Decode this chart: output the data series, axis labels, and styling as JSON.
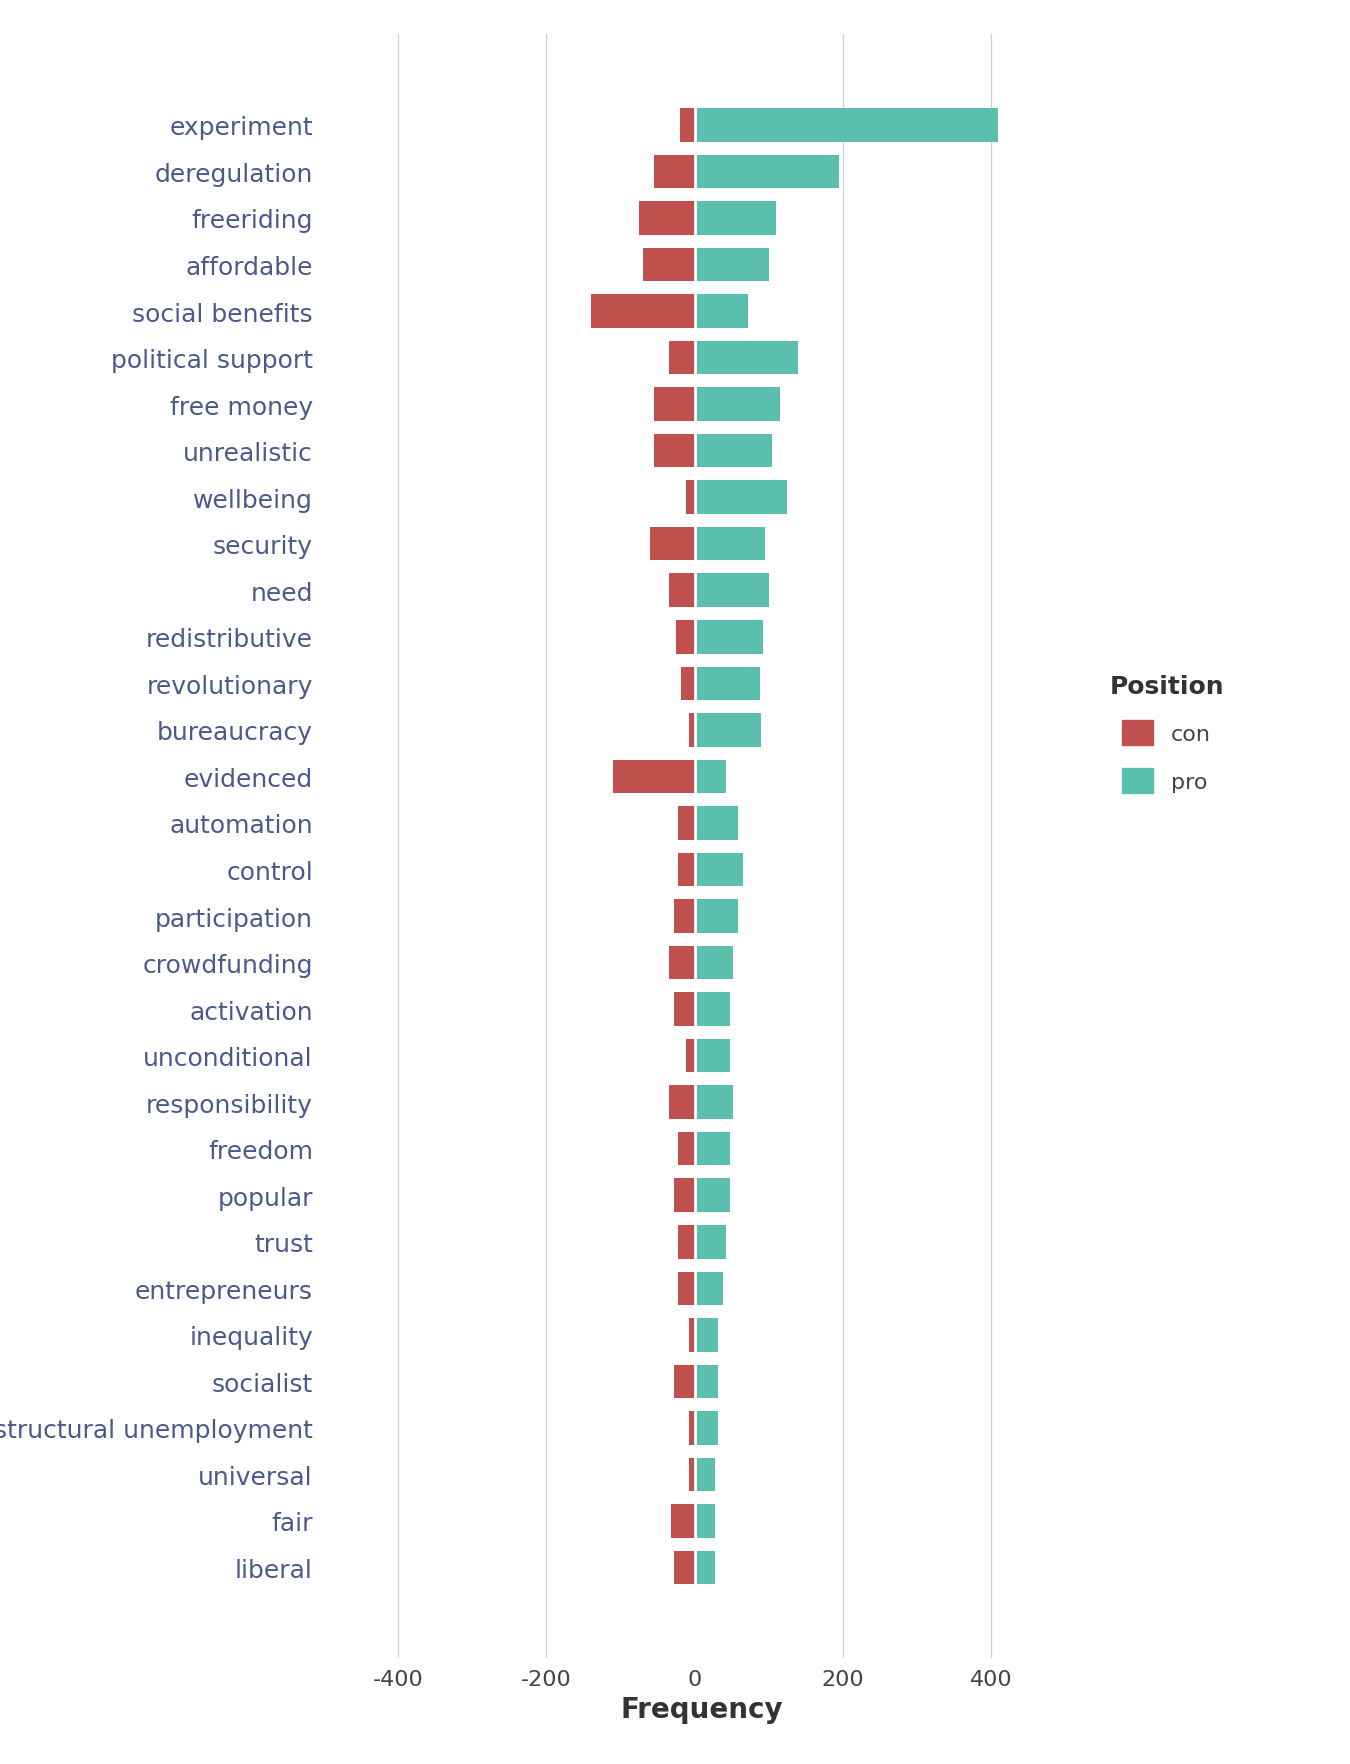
{
  "categories": [
    "experiment",
    "deregulation",
    "freeriding",
    "affordable",
    "social benefits",
    "political support",
    "free money",
    "unrealistic",
    "wellbeing",
    "security",
    "need",
    "redistributive",
    "revolutionary",
    "bureaucracy",
    "evidenced",
    "automation",
    "control",
    "participation",
    "crowdfunding",
    "activation",
    "unconditional",
    "responsibility",
    "freedom",
    "popular",
    "trust",
    "entrepreneurs",
    "inequality",
    "socialist",
    "structural unemployment",
    "universal",
    "fair",
    "liberal"
  ],
  "con_values": [
    -20,
    -55,
    -75,
    -70,
    -140,
    -35,
    -55,
    -55,
    -12,
    -60,
    -35,
    -25,
    -18,
    -8,
    -110,
    -22,
    -22,
    -28,
    -35,
    -28,
    -12,
    -35,
    -22,
    -28,
    -22,
    -22,
    -8,
    -28,
    -8,
    -8,
    -32,
    -28
  ],
  "pro_values": [
    410,
    195,
    110,
    100,
    72,
    140,
    115,
    105,
    125,
    95,
    100,
    92,
    88,
    90,
    42,
    58,
    65,
    58,
    52,
    48,
    48,
    52,
    48,
    48,
    42,
    38,
    32,
    32,
    32,
    28,
    28,
    28
  ],
  "con_color": "#c0504d",
  "pro_color": "#5bbfad",
  "bg_color": "#ffffff",
  "grid_color": "#d0d0d0",
  "xlabel": "Frequency",
  "legend_title": "Position",
  "legend_labels": [
    "con",
    "pro"
  ],
  "xlim": [
    -500,
    520
  ],
  "xticks": [
    -400,
    -200,
    0,
    200,
    400
  ],
  "label_color": "#4a5a8a",
  "bar_height": 0.72
}
